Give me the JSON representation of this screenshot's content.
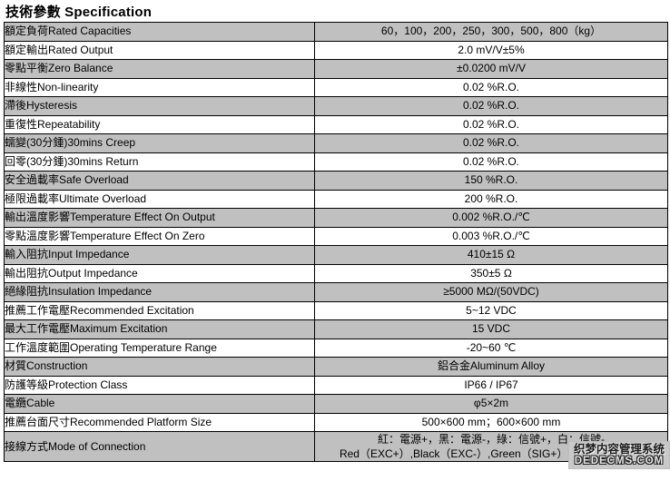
{
  "title": "技術參數 Specification",
  "colors": {
    "row_shaded": "#c0c0c0",
    "border": "#000000",
    "watermark_bg": "#c9c9c9"
  },
  "table": {
    "rows": [
      {
        "label": "額定負荷Rated Capacities",
        "value": "60，100，200，250，300，500，800（kg）"
      },
      {
        "label": "額定輸出Rated Output",
        "value": "2.0 mV/V±5%"
      },
      {
        "label": "零點平衡Zero Balance",
        "value": "±0.0200 mV/V"
      },
      {
        "label": "非線性Non-linearity",
        "value": "0.02 %R.O."
      },
      {
        "label": "滯後Hysteresis",
        "value": "0.02 %R.O."
      },
      {
        "label": "重復性Repeatability",
        "value": "0.02 %R.O."
      },
      {
        "label": "蠕變(30分鍾)30mins Creep",
        "value": "0.02 %R.O."
      },
      {
        "label": "回零(30分鍾)30mins Return",
        "value": "0.02 %R.O."
      },
      {
        "label": "安全過載率Safe Overload",
        "value": "150 %R.O."
      },
      {
        "label": "極限過載率Ultimate Overload",
        "value": "200 %R.O."
      },
      {
        "label": "輸出溫度影響Temperature Effect On Output",
        "value": "0.002 %R.O./℃"
      },
      {
        "label": "零點溫度影響Temperature Effect On Zero",
        "value": "0.003 %R.O./℃"
      },
      {
        "label": "輸入阻抗Input Impedance",
        "value": "410±15 Ω"
      },
      {
        "label": "輸出阻抗Output Impedance",
        "value": "350±5 Ω"
      },
      {
        "label": "絕緣阻抗Insulation Impedance",
        "value": "≥5000 MΩ/(50VDC)"
      },
      {
        "label": "推薦工作電壓Recommended Excitation",
        "value": "5~12 VDC"
      },
      {
        "label": "最大工作電壓Maximum Excitation",
        "value": "15 VDC"
      },
      {
        "label": "工作溫度範圍Operating Temperature Range",
        "value": "-20~60 ℃"
      },
      {
        "label": "材質Construction",
        "value": "鋁合金Aluminum Alloy"
      },
      {
        "label": "防護等級Protection Class",
        "value": "IP66 / IP67"
      },
      {
        "label": "電纜Cable",
        "value": "φ5×2m"
      },
      {
        "label": "推薦台面尺寸Recommended Platform Size",
        "value": "500×600 mm；600×600 mm"
      },
      {
        "label": "接線方式Mode of Connection",
        "value_line1": "紅：電源+，黑：電源-，綠：信號+，白：信號-",
        "value_line2": "Red（EXC+）,Black（EXC-）,Green（SIG+）,White（SIG-）"
      }
    ]
  },
  "watermark": {
    "line1": "织梦内容管理系统",
    "line2": "DEDECMS.COM"
  }
}
